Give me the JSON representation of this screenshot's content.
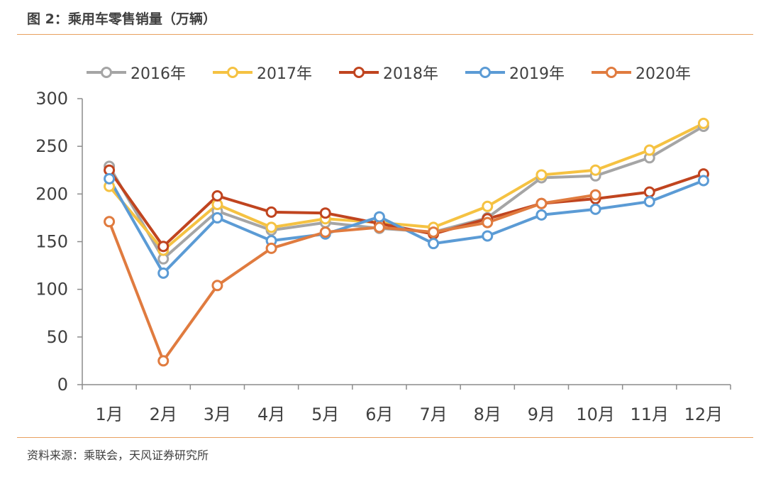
{
  "header": {
    "title": "图 2：乘用车零售销量（万辆）"
  },
  "footer": {
    "source": "资料来源：乘联会，天风证券研究所"
  },
  "chart_data": {
    "type": "line",
    "title": "",
    "xlabel": "",
    "ylabel": "",
    "categories": [
      "1月",
      "2月",
      "3月",
      "4月",
      "5月",
      "6月",
      "7月",
      "8月",
      "9月",
      "10月",
      "11月",
      "12月"
    ],
    "ylim": [
      0,
      300
    ],
    "yticks": [
      0,
      50,
      100,
      150,
      200,
      250,
      300
    ],
    "grid": false,
    "legend_position": "top",
    "series": [
      {
        "name": "2016年",
        "color": "#A5A5A5",
        "values": [
          229,
          132,
          182,
          162,
          170,
          164,
          160,
          175,
          217,
          219,
          238,
          271
        ]
      },
      {
        "name": "2017年",
        "color": "#F5C242",
        "values": [
          208,
          141,
          189,
          165,
          174,
          170,
          165,
          187,
          220,
          225,
          246,
          274
        ]
      },
      {
        "name": "2018年",
        "color": "#C0441F",
        "values": [
          225,
          145,
          198,
          181,
          180,
          169,
          158,
          174,
          190,
          195,
          202,
          221
        ]
      },
      {
        "name": "2019年",
        "color": "#5B9BD5",
        "values": [
          216,
          117,
          175,
          151,
          158,
          176,
          148,
          156,
          178,
          184,
          192,
          214
        ]
      },
      {
        "name": "2020年",
        "color": "#E07B3F",
        "values": [
          171,
          25,
          104,
          143,
          160,
          165,
          160,
          170,
          190,
          199,
          null,
          null
        ]
      }
    ]
  }
}
